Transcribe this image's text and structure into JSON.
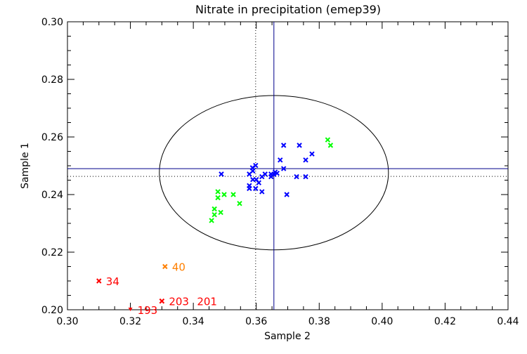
{
  "chart_data": {
    "type": "scatter",
    "title": "Nitrate in precipitation (emep39)",
    "xlabel": "Sample 2",
    "ylabel": "Sample 1",
    "xlim": [
      0.3,
      0.44
    ],
    "ylim": [
      0.2,
      0.3
    ],
    "xticks": [
      "0.30",
      "0.32",
      "0.34",
      "0.36",
      "0.38",
      "0.40",
      "0.42",
      "0.44"
    ],
    "yticks": [
      "0.20",
      "0.22",
      "0.24",
      "0.26",
      "0.28",
      "0.30"
    ],
    "grid": false,
    "colors": {
      "blue": "#0000ff",
      "green": "#00ff00",
      "red": "#ff0000",
      "orange": "#ff8000",
      "crosshair": "#00008b",
      "ellipse": "#000000"
    },
    "series": [
      {
        "color": "#0000ff",
        "marker": "x",
        "points": [
          [
            0.3687,
            0.2571
          ],
          [
            0.3737,
            0.2571
          ],
          [
            0.3777,
            0.2541
          ],
          [
            0.3676,
            0.252
          ],
          [
            0.3757,
            0.252
          ],
          [
            0.3598,
            0.2501
          ],
          [
            0.3588,
            0.2493
          ],
          [
            0.3589,
            0.2482
          ],
          [
            0.3687,
            0.249
          ],
          [
            0.3489,
            0.2471
          ],
          [
            0.3578,
            0.2471
          ],
          [
            0.3628,
            0.2471
          ],
          [
            0.3618,
            0.2462
          ],
          [
            0.3647,
            0.2471
          ],
          [
            0.3647,
            0.2462
          ],
          [
            0.366,
            0.2478
          ],
          [
            0.3666,
            0.2474
          ],
          [
            0.3656,
            0.247
          ],
          [
            0.3728,
            0.2462
          ],
          [
            0.3757,
            0.2462
          ],
          [
            0.3589,
            0.2452
          ],
          [
            0.36,
            0.2452
          ],
          [
            0.3608,
            0.2441
          ],
          [
            0.3578,
            0.2431
          ],
          [
            0.3578,
            0.2421
          ],
          [
            0.3598,
            0.2421
          ],
          [
            0.3618,
            0.241
          ],
          [
            0.3697,
            0.24
          ]
        ]
      },
      {
        "color": "#00ff00",
        "marker": "x",
        "points": [
          [
            0.3827,
            0.259
          ],
          [
            0.3836,
            0.2571
          ],
          [
            0.3478,
            0.241
          ],
          [
            0.3498,
            0.24
          ],
          [
            0.3527,
            0.24
          ],
          [
            0.3478,
            0.2389
          ],
          [
            0.3547,
            0.2369
          ],
          [
            0.3467,
            0.235
          ],
          [
            0.3487,
            0.2338
          ],
          [
            0.3467,
            0.233
          ],
          [
            0.3458,
            0.231
          ]
        ]
      }
    ],
    "labeled_points": [
      {
        "label": "34",
        "x": 0.31,
        "y": 0.21,
        "color": "#ff0000",
        "marker": "x"
      },
      {
        "label": "40",
        "x": 0.331,
        "y": 0.215,
        "color": "#ff8000",
        "marker": "x"
      },
      {
        "label": "203",
        "x": 0.33,
        "y": 0.203,
        "color": "#ff0000",
        "marker": "x"
      },
      {
        "label": "201",
        "x": 0.33,
        "y": 0.203,
        "color": "#ff0000",
        "marker": "x"
      },
      {
        "label": "193",
        "x": 0.32,
        "y": 0.2,
        "color": "#ff0000",
        "marker": "arrow-down"
      }
    ],
    "crosshair_solid": {
      "x": 0.3656,
      "y": 0.249
    },
    "crosshair_dotted": {
      "x": 0.3598,
      "y": 0.2463
    },
    "ellipse": {
      "cx": 0.3656,
      "cy": 0.2476,
      "rx": 0.0364,
      "ry": 0.0268
    }
  }
}
